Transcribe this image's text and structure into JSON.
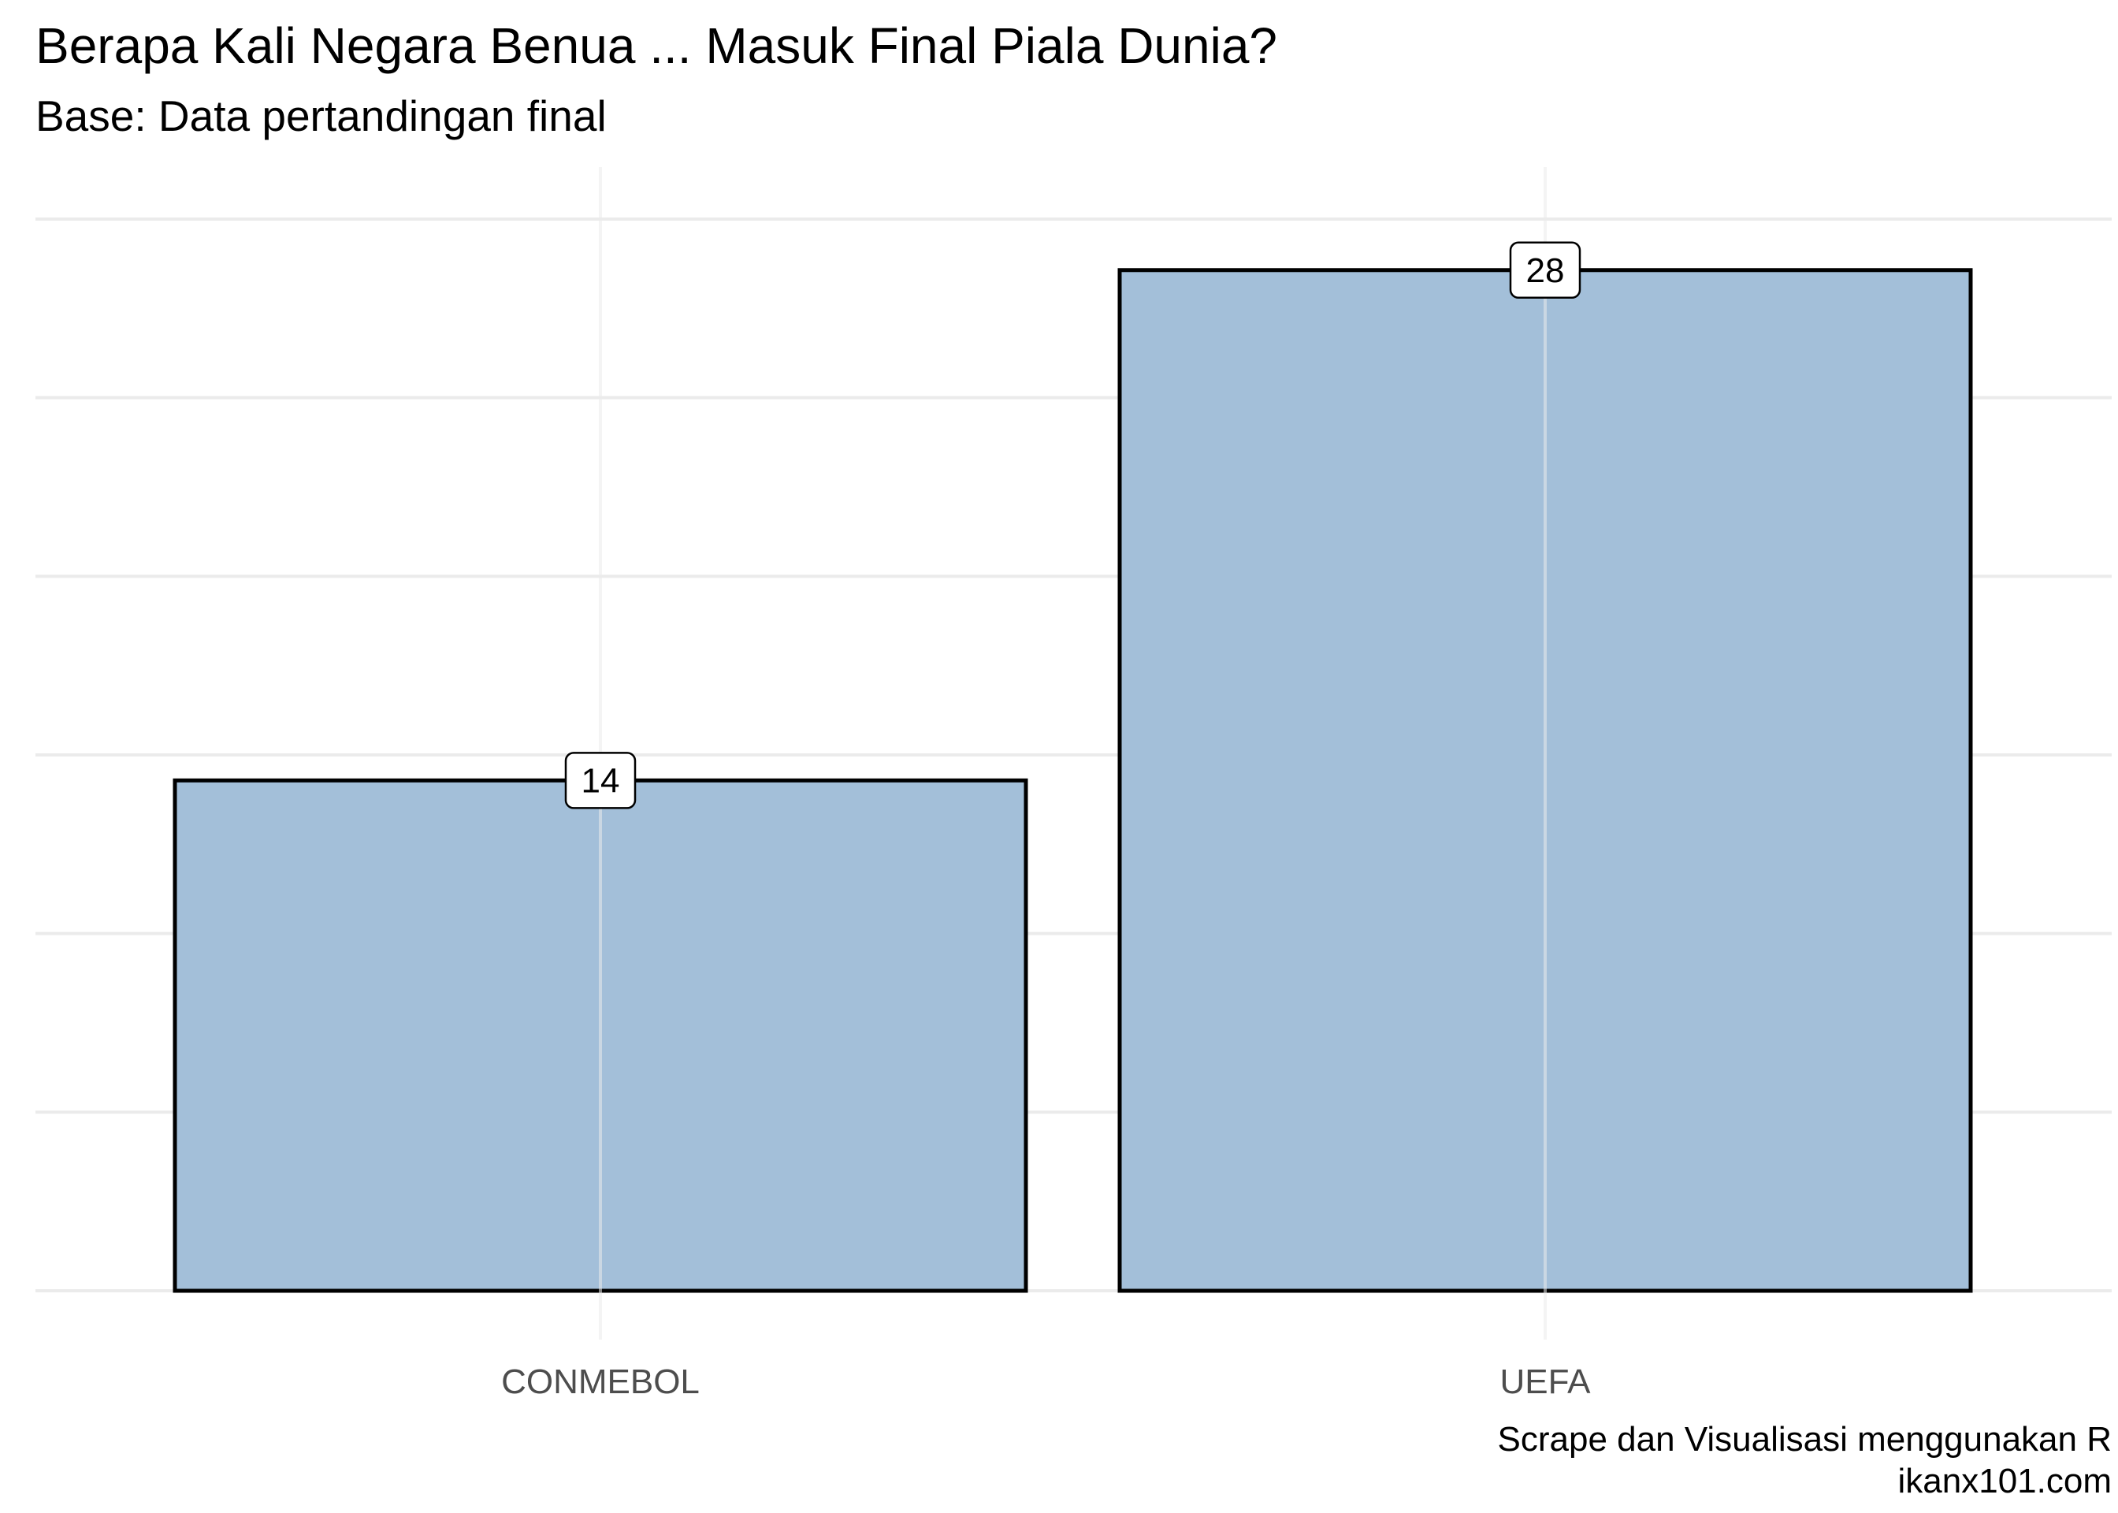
{
  "header": {
    "title": "Berapa Kali Negara Benua ... Masuk Final Piala Dunia?",
    "subtitle": "Base: Data pertandingan final"
  },
  "caption": {
    "line1": "Scrape dan Visualisasi menggunakan R",
    "line2": "ikanx101.com"
  },
  "colors": {
    "bar_fill": "#a3bfd9",
    "bar_outline": "#000000",
    "grid": "#ebebeb",
    "tick_label": "#4d4d4d"
  },
  "chart_data": {
    "type": "bar",
    "title": "Berapa Kali Negara Benua ... Masuk Final Piala Dunia?",
    "subtitle": "Base: Data pertandingan final",
    "categories": [
      "CONMEBOL",
      "UEFA"
    ],
    "values": [
      14,
      28
    ],
    "data_labels": [
      "14",
      "28"
    ],
    "xlabel": "",
    "ylabel": "",
    "ylim": [
      0,
      29.4
    ],
    "y_axis_labels_shown": false,
    "grid": true,
    "legend": "none"
  }
}
